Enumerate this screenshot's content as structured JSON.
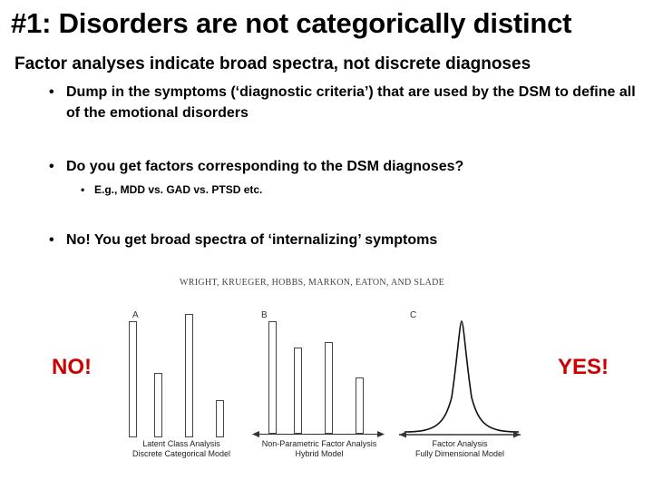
{
  "slide": {
    "title": "#1: Disorders are not categorically distinct",
    "subtitle": "Factor analyses indicate broad spectra, not discrete diagnoses",
    "bullets": [
      {
        "text": "Dump in the symptoms (‘diagnostic criteria’) that are used by the DSM to define all of the emotional disorders"
      },
      {
        "text": "Do you get factors corresponding to the DSM diagnoses?"
      },
      {
        "text": "E.g., MDD vs. GAD vs. PTSD etc."
      },
      {
        "text": "No!  You get broad spectra of ‘internalizing’ symptoms"
      }
    ],
    "bullet_glyph": "•",
    "no_label": "NO!",
    "yes_label": "YES!",
    "label_color": "#cc0000"
  },
  "figure": {
    "header": "WRIGHT,  KRUEGER, HOBBS, MARKON, EATON, AND SLADE",
    "panels": [
      {
        "letter": "A",
        "caption_line1": "Latent Class Analysis",
        "caption_line2": "Discrete Categorical Model"
      },
      {
        "letter": "B",
        "caption_line1": "Non-Parametric Factor Analysis",
        "caption_line2": "Hybrid Model"
      },
      {
        "letter": "C",
        "caption_line1": "Factor Analysis",
        "caption_line2": "Fully Dimensional Model"
      }
    ]
  }
}
